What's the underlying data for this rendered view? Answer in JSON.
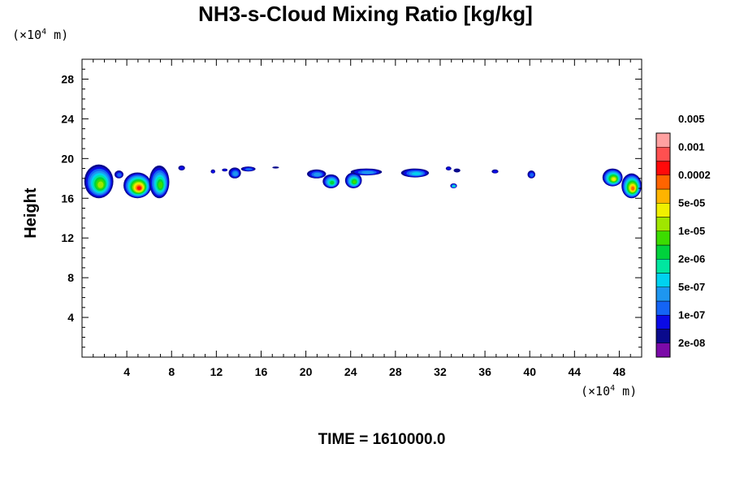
{
  "chart_data": {
    "type": "heatmap",
    "title": "NH3-s-Cloud Mixing Ratio [kg/kg]",
    "xlabel": "",
    "ylabel": "Height",
    "x_unit": "(×10⁴ m)",
    "y_unit": "(×10⁴ m)",
    "x_unit_base": "(×10",
    "y_unit_base": "(×10",
    "unit_exponent": "4",
    "unit_tail": " m)",
    "xlim": [
      0,
      50
    ],
    "ylim": [
      0,
      30
    ],
    "x_ticks": [
      4,
      8,
      12,
      16,
      20,
      24,
      28,
      32,
      36,
      40,
      44,
      48
    ],
    "y_ticks": [
      4,
      8,
      12,
      16,
      20,
      24,
      28
    ],
    "colorbar": {
      "labels": [
        "0.005",
        "0.001",
        "0.0002",
        "5e-05",
        "1e-05",
        "2e-06",
        "5e-07",
        "1e-07",
        "2e-08"
      ],
      "colors": [
        "#7b0aa8",
        "#0a0a8c",
        "#0a0ae6",
        "#1464f5",
        "#1e96f0",
        "#00d2f0",
        "#00e6a0",
        "#00d23c",
        "#3cdc00",
        "#a0e600",
        "#f0f000",
        "#ffb400",
        "#ff6400",
        "#ff0a0a",
        "#ff5050",
        "#ffa0a0"
      ]
    },
    "clouds": [
      {
        "x": [
          0.2,
          2.8
        ],
        "y": [
          16.0,
          19.4
        ],
        "level": 9
      },
      {
        "x": [
          2.9,
          3.7
        ],
        "y": [
          18.0,
          18.8
        ],
        "level": 3
      },
      {
        "x": [
          3.7,
          6.2
        ],
        "y": [
          16.0,
          18.6
        ],
        "level": 13
      },
      {
        "x": [
          6.0,
          7.8
        ],
        "y": [
          16.0,
          19.3
        ],
        "level": 8
      },
      {
        "x": [
          8.6,
          9.2
        ],
        "y": [
          18.8,
          19.3
        ],
        "level": 2
      },
      {
        "x": [
          11.5,
          11.9
        ],
        "y": [
          18.5,
          18.9
        ],
        "level": 2
      },
      {
        "x": [
          12.5,
          13.0
        ],
        "y": [
          18.7,
          19.0
        ],
        "level": 2
      },
      {
        "x": [
          13.1,
          14.2
        ],
        "y": [
          18.0,
          19.1
        ],
        "level": 4
      },
      {
        "x": [
          14.2,
          15.5
        ],
        "y": [
          18.7,
          19.2
        ],
        "level": 3
      },
      {
        "x": [
          17.0,
          17.6
        ],
        "y": [
          19.0,
          19.2
        ],
        "level": 1
      },
      {
        "x": [
          20.1,
          21.8
        ],
        "y": [
          18.0,
          18.9
        ],
        "level": 4
      },
      {
        "x": [
          21.5,
          23.0
        ],
        "y": [
          17.0,
          18.4
        ],
        "level": 7
      },
      {
        "x": [
          23.5,
          25.0
        ],
        "y": [
          17.0,
          18.6
        ],
        "level": 8
      },
      {
        "x": [
          24.0,
          26.8
        ],
        "y": [
          18.3,
          19.0
        ],
        "level": 4
      },
      {
        "x": [
          28.5,
          31.0
        ],
        "y": [
          18.1,
          19.0
        ],
        "level": 5
      },
      {
        "x": [
          32.5,
          33.0
        ],
        "y": [
          18.8,
          19.2
        ],
        "level": 2
      },
      {
        "x": [
          33.2,
          33.8
        ],
        "y": [
          18.6,
          19.0
        ],
        "level": 1
      },
      {
        "x": [
          32.9,
          33.5
        ],
        "y": [
          17.0,
          17.5
        ],
        "level": 6
      },
      {
        "x": [
          36.6,
          37.2
        ],
        "y": [
          18.5,
          18.9
        ],
        "level": 2
      },
      {
        "x": [
          39.8,
          40.5
        ],
        "y": [
          18.0,
          18.8
        ],
        "level": 3
      },
      {
        "x": [
          46.5,
          48.3
        ],
        "y": [
          17.2,
          19.0
        ],
        "level": 10
      },
      {
        "x": [
          48.2,
          50.0
        ],
        "y": [
          16.0,
          18.5
        ],
        "level": 12
      }
    ]
  },
  "footer": {
    "time_label": "TIME = 1610000.0"
  }
}
